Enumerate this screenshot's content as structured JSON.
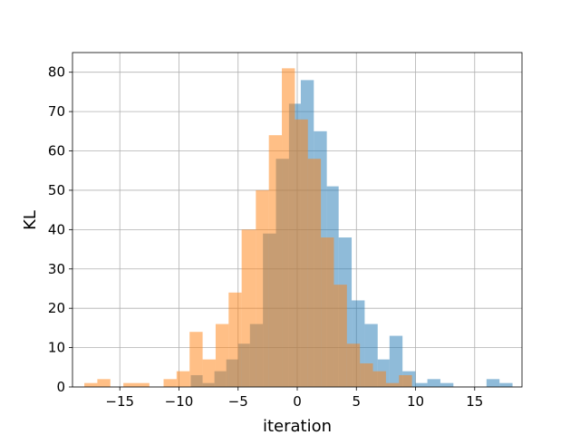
{
  "chart_data": {
    "type": "histogram",
    "xlabel": "iteration",
    "ylabel": "KL",
    "xlim": [
      -19,
      19
    ],
    "ylim": [
      0,
      85
    ],
    "grid": true,
    "x_ticks": [
      -15,
      -10,
      -5,
      0,
      5,
      10,
      15
    ],
    "x_tick_labels": [
      "−15",
      "−10",
      "−5",
      "0",
      "5",
      "10",
      "15"
    ],
    "y_ticks": [
      0,
      10,
      20,
      30,
      40,
      50,
      60,
      70,
      80
    ],
    "y_tick_labels": [
      "0",
      "10",
      "20",
      "30",
      "40",
      "50",
      "60",
      "70",
      "80"
    ],
    "series": [
      {
        "color": "#1f77b4",
        "opacity": 0.5,
        "bins": [
          {
            "x0": -9.0,
            "x1": -8.0,
            "count": 3
          },
          {
            "x0": -8.0,
            "x1": -7.0,
            "count": 1
          },
          {
            "x0": -7.0,
            "x1": -6.0,
            "count": 4
          },
          {
            "x0": -6.0,
            "x1": -5.0,
            "count": 7
          },
          {
            "x0": -5.0,
            "x1": -4.0,
            "count": 11
          },
          {
            "x0": -4.0,
            "x1": -2.9,
            "count": 16
          },
          {
            "x0": -2.9,
            "x1": -1.8,
            "count": 39
          },
          {
            "x0": -1.8,
            "x1": -0.7,
            "count": 58
          },
          {
            "x0": -0.7,
            "x1": 0.3,
            "count": 72
          },
          {
            "x0": 0.3,
            "x1": 1.4,
            "count": 78
          },
          {
            "x0": 1.4,
            "x1": 2.5,
            "count": 65
          },
          {
            "x0": 2.5,
            "x1": 3.5,
            "count": 51
          },
          {
            "x0": 3.5,
            "x1": 4.6,
            "count": 38
          },
          {
            "x0": 4.6,
            "x1": 5.7,
            "count": 22
          },
          {
            "x0": 5.7,
            "x1": 6.8,
            "count": 16
          },
          {
            "x0": 6.8,
            "x1": 7.8,
            "count": 7
          },
          {
            "x0": 7.8,
            "x1": 8.9,
            "count": 13
          },
          {
            "x0": 8.9,
            "x1": 10.0,
            "count": 4
          },
          {
            "x0": 10.0,
            "x1": 11.0,
            "count": 1
          },
          {
            "x0": 11.0,
            "x1": 12.1,
            "count": 2
          },
          {
            "x0": 12.1,
            "x1": 13.2,
            "count": 1
          },
          {
            "x0": 16.0,
            "x1": 17.1,
            "count": 2
          },
          {
            "x0": 17.1,
            "x1": 18.2,
            "count": 1
          }
        ]
      },
      {
        "color": "#ff7f0e",
        "opacity": 0.5,
        "bins": [
          {
            "x0": -18.0,
            "x1": -16.9,
            "count": 1
          },
          {
            "x0": -16.9,
            "x1": -15.8,
            "count": 2
          },
          {
            "x0": -14.7,
            "x1": -13.6,
            "count": 1
          },
          {
            "x0": -13.6,
            "x1": -12.5,
            "count": 1
          },
          {
            "x0": -11.3,
            "x1": -10.2,
            "count": 2
          },
          {
            "x0": -10.2,
            "x1": -9.1,
            "count": 4
          },
          {
            "x0": -9.1,
            "x1": -8.0,
            "count": 14
          },
          {
            "x0": -8.0,
            "x1": -6.9,
            "count": 7
          },
          {
            "x0": -6.9,
            "x1": -5.8,
            "count": 16
          },
          {
            "x0": -5.8,
            "x1": -4.7,
            "count": 24
          },
          {
            "x0": -4.7,
            "x1": -3.5,
            "count": 40
          },
          {
            "x0": -3.5,
            "x1": -2.4,
            "count": 50
          },
          {
            "x0": -2.4,
            "x1": -1.3,
            "count": 64
          },
          {
            "x0": -1.3,
            "x1": -0.2,
            "count": 81
          },
          {
            "x0": -0.2,
            "x1": 0.9,
            "count": 68
          },
          {
            "x0": 0.9,
            "x1": 2.0,
            "count": 58
          },
          {
            "x0": 2.0,
            "x1": 3.1,
            "count": 38
          },
          {
            "x0": 3.1,
            "x1": 4.2,
            "count": 26
          },
          {
            "x0": 4.2,
            "x1": 5.3,
            "count": 11
          },
          {
            "x0": 5.3,
            "x1": 6.4,
            "count": 6
          },
          {
            "x0": 6.4,
            "x1": 7.5,
            "count": 4
          },
          {
            "x0": 7.5,
            "x1": 8.6,
            "count": 1
          },
          {
            "x0": 8.6,
            "x1": 9.7,
            "count": 3
          }
        ]
      }
    ]
  }
}
